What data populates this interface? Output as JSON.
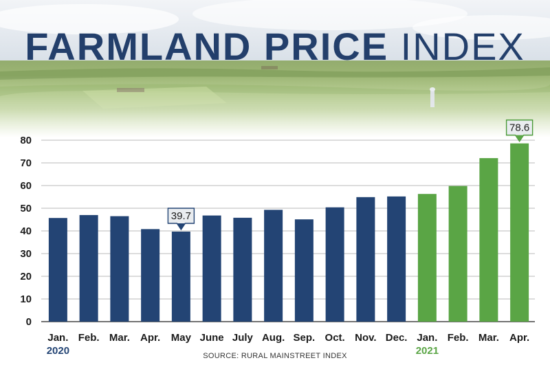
{
  "title": {
    "bold": "FARMLAND PRICE",
    "light": "INDEX"
  },
  "source": "SOURCE: RURAL MAINSTREET INDEX",
  "colors": {
    "series_2020": "#234474",
    "series_2021": "#5aa545",
    "title": "#233f6b"
  },
  "chart_data": {
    "type": "bar",
    "title": "FARMLAND PRICE INDEX",
    "categories": [
      "Jan.",
      "Feb.",
      "Mar.",
      "Apr.",
      "May",
      "June",
      "July",
      "Aug.",
      "Sep.",
      "Oct.",
      "Nov.",
      "Dec.",
      "Jan.",
      "Feb.",
      "Mar.",
      "Apr."
    ],
    "values": [
      45.7,
      47.0,
      46.5,
      40.8,
      39.7,
      46.8,
      45.8,
      49.3,
      45.1,
      50.4,
      54.9,
      55.2,
      56.3,
      59.8,
      72.1,
      78.6
    ],
    "year_groups": [
      {
        "year": "2020",
        "months": 12,
        "color": "#234474"
      },
      {
        "year": "2021",
        "months": 4,
        "color": "#5aa545"
      }
    ],
    "yticks": [
      0,
      10,
      20,
      30,
      40,
      50,
      60,
      70,
      80
    ],
    "ylim": [
      0,
      80
    ],
    "callouts": [
      {
        "index": 4,
        "label": "39.7"
      },
      {
        "index": 15,
        "label": "78.6"
      }
    ],
    "grid": true,
    "xlabel": "",
    "ylabel": ""
  }
}
